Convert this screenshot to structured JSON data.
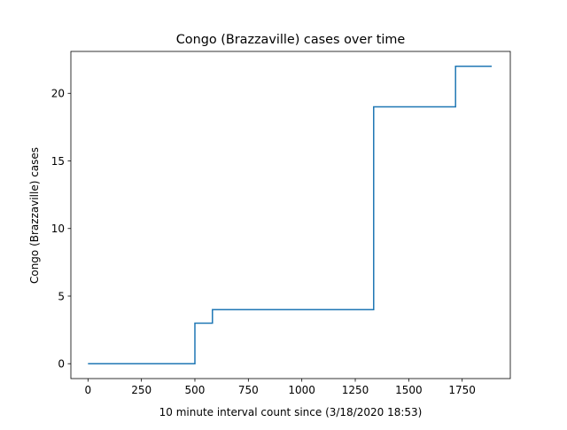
{
  "chart_data": {
    "type": "line",
    "title": "Congo (Brazzaville) cases over time",
    "xlabel": "10 minute interval count since (3/18/2020 18:53)",
    "ylabel": "Congo (Brazzaville) cases",
    "xlim": [
      -80,
      1975
    ],
    "ylim": [
      -1.1,
      23.1
    ],
    "xticks": [
      0,
      250,
      500,
      750,
      1000,
      1250,
      1500,
      1750
    ],
    "yticks": [
      0,
      5,
      10,
      15,
      20
    ],
    "grid": false,
    "line_color": "#1f77b4",
    "step": "post",
    "series": [
      {
        "x": [
          0,
          500,
          582,
          1336,
          1719,
          1888
        ],
        "y": [
          0,
          3,
          4,
          19,
          22,
          22
        ]
      }
    ]
  }
}
